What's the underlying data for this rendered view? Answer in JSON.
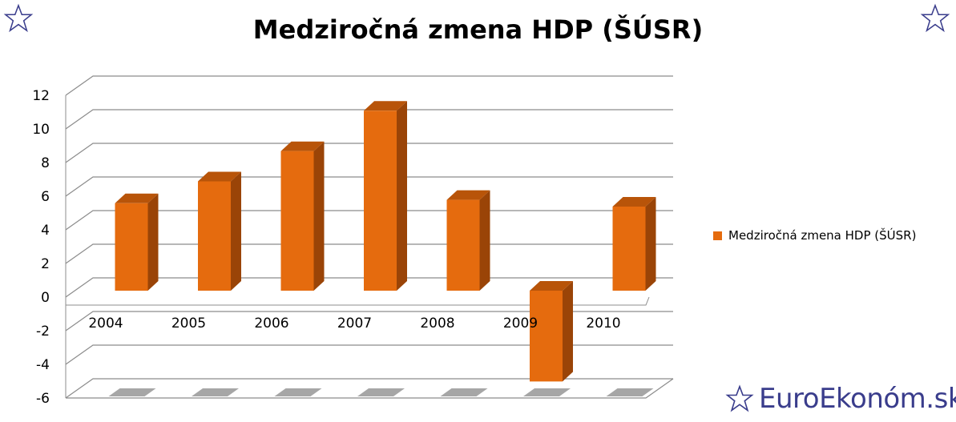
{
  "chart_data": {
    "type": "bar",
    "title": "Medziročná zmena HDP (ŠÚSR)",
    "categories": [
      "2004",
      "2005",
      "2006",
      "2007",
      "2008",
      "2009",
      "2010"
    ],
    "series": [
      {
        "name": "Medziročná zmena HDP (ŠÚSR)",
        "values": [
          5.2,
          6.5,
          8.3,
          10.7,
          5.4,
          -5.4,
          5.0
        ]
      }
    ],
    "ylim": [
      -6,
      12
    ],
    "yticks": [
      "12",
      "10",
      "8",
      "6",
      "4",
      "2",
      "0",
      "-2",
      "-4",
      "-6"
    ],
    "grid": true,
    "legend_position": "right",
    "three_d": true
  },
  "colors": {
    "bar_front": "#e56b0e",
    "bar_side": "#9a4407",
    "bar_top": "#b85409",
    "grid": "#8c8c8c",
    "shadow": "#a6a6a6",
    "brand": "#3a3d8c"
  },
  "icons": {
    "corner_left": "star-outline-icon",
    "corner_right": "star-outline-icon",
    "brand": "star-outline-icon"
  },
  "brand": {
    "text": "EuroEkonóm.sk"
  }
}
